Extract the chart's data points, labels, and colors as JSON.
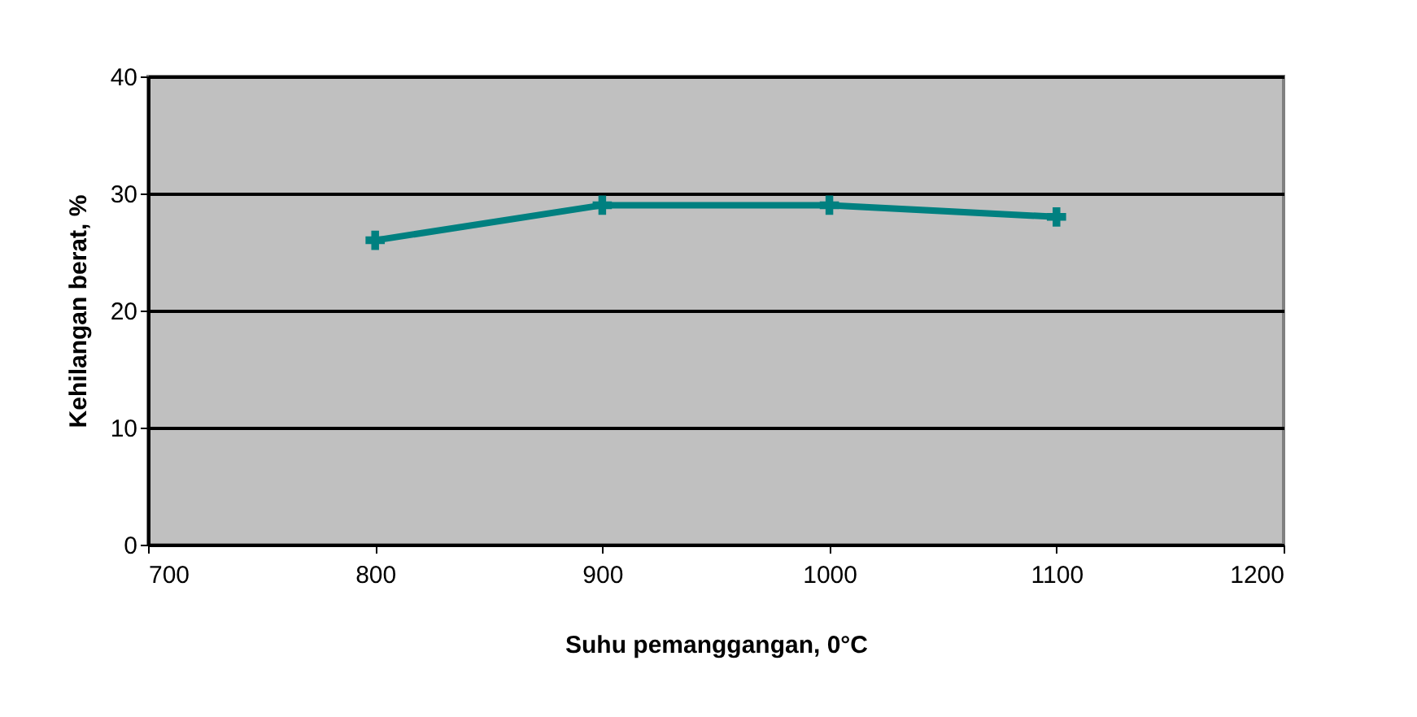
{
  "chart_data": {
    "type": "line",
    "xlabel": "Suhu pemanggangan, 0°C",
    "ylabel": "Kehilangan berat, %",
    "x": [
      800,
      900,
      1000,
      1100
    ],
    "series": [
      {
        "color": "#008080",
        "values": [
          26,
          29,
          29,
          28
        ]
      }
    ],
    "xlim": [
      700,
      1200
    ],
    "xticks": [
      700,
      800,
      900,
      1000,
      1100,
      1200
    ],
    "ylim": [
      0,
      40
    ],
    "yticks": [
      0,
      10,
      20,
      30,
      40
    ],
    "grid": "y",
    "marker": "cross",
    "line_style": "solid"
  }
}
